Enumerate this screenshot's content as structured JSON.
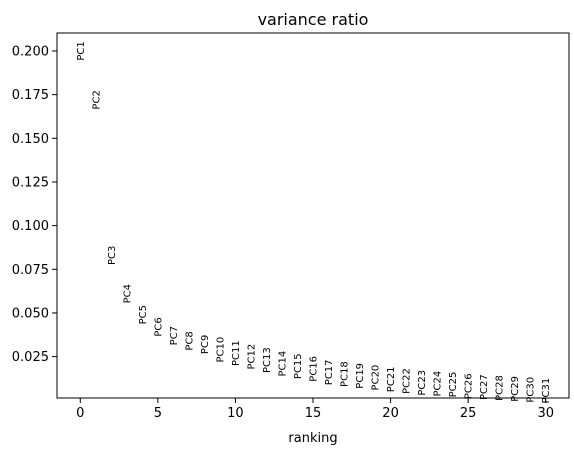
{
  "chart_data": {
    "type": "scatter",
    "title": "variance ratio",
    "xlabel": "ranking",
    "ylabel": "",
    "xlim": [
      -1.5,
      31.5
    ],
    "ylim": [
      0.0013,
      0.2103
    ],
    "xticks": [
      0,
      5,
      10,
      15,
      20,
      25,
      30
    ],
    "yticks": [
      0.025,
      0.05,
      0.075,
      0.1,
      0.125,
      0.15,
      0.175,
      0.2
    ],
    "ytick_labels": [
      "0.025",
      "0.050",
      "0.075",
      "0.100",
      "0.125",
      "0.150",
      "0.175",
      "0.200"
    ],
    "grid": false,
    "points": [
      {
        "label": "PC1",
        "x": 0,
        "y": 0.2
      },
      {
        "label": "PC2",
        "x": 1,
        "y": 0.172
      },
      {
        "label": "PC3",
        "x": 2,
        "y": 0.083
      },
      {
        "label": "PC4",
        "x": 3,
        "y": 0.061
      },
      {
        "label": "PC5",
        "x": 4,
        "y": 0.049
      },
      {
        "label": "PC6",
        "x": 5,
        "y": 0.042
      },
      {
        "label": "PC7",
        "x": 6,
        "y": 0.037
      },
      {
        "label": "PC8",
        "x": 7,
        "y": 0.034
      },
      {
        "label": "PC9",
        "x": 8,
        "y": 0.032
      },
      {
        "label": "PC10",
        "x": 9,
        "y": 0.029
      },
      {
        "label": "PC11",
        "x": 10,
        "y": 0.027
      },
      {
        "label": "PC12",
        "x": 11,
        "y": 0.025
      },
      {
        "label": "PC13",
        "x": 12,
        "y": 0.023
      },
      {
        "label": "PC14",
        "x": 13,
        "y": 0.021
      },
      {
        "label": "PC15",
        "x": 14,
        "y": 0.0195
      },
      {
        "label": "PC16",
        "x": 15,
        "y": 0.018
      },
      {
        "label": "PC17",
        "x": 16,
        "y": 0.016
      },
      {
        "label": "PC18",
        "x": 17,
        "y": 0.015
      },
      {
        "label": "PC19",
        "x": 18,
        "y": 0.014
      },
      {
        "label": "PC20",
        "x": 19,
        "y": 0.013
      },
      {
        "label": "PC21",
        "x": 20,
        "y": 0.012
      },
      {
        "label": "PC22",
        "x": 21,
        "y": 0.011
      },
      {
        "label": "PC23",
        "x": 22,
        "y": 0.01
      },
      {
        "label": "PC24",
        "x": 23,
        "y": 0.0095
      },
      {
        "label": "PC25",
        "x": 24,
        "y": 0.009
      },
      {
        "label": "PC26",
        "x": 25,
        "y": 0.008
      },
      {
        "label": "PC27",
        "x": 26,
        "y": 0.0075
      },
      {
        "label": "PC28",
        "x": 27,
        "y": 0.007
      },
      {
        "label": "PC29",
        "x": 28,
        "y": 0.0065
      },
      {
        "label": "PC30",
        "x": 29,
        "y": 0.006
      },
      {
        "label": "PC31",
        "x": 30,
        "y": 0.0055
      }
    ]
  }
}
